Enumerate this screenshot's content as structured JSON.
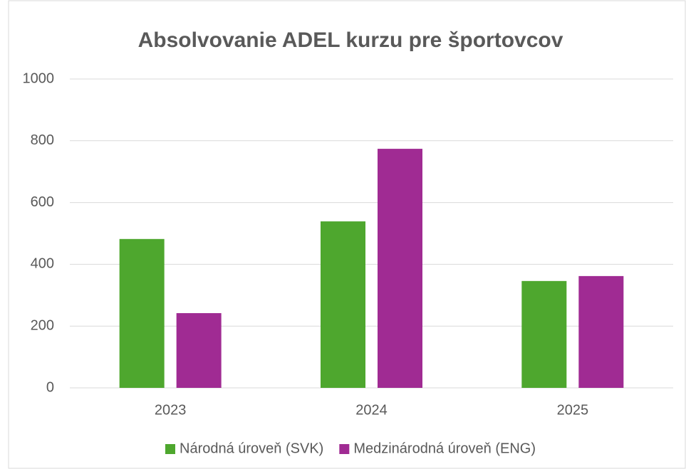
{
  "chart_data": {
    "type": "bar",
    "title": "Absolvovanie ADEL kurzu pre športovcov",
    "categories": [
      "2023",
      "2024",
      "2025"
    ],
    "series": [
      {
        "name": "Národná úroveň (SVK)",
        "color": "#4ea72e",
        "values": [
          482,
          539,
          346
        ]
      },
      {
        "name": "Medzinárodná úroveň (ENG)",
        "color": "#a02b93",
        "values": [
          242,
          774,
          362
        ]
      }
    ],
    "ylim": [
      0,
      1000
    ],
    "yticks": [
      0,
      200,
      400,
      600,
      800,
      1000
    ],
    "grid": true,
    "legend": "bottom"
  }
}
